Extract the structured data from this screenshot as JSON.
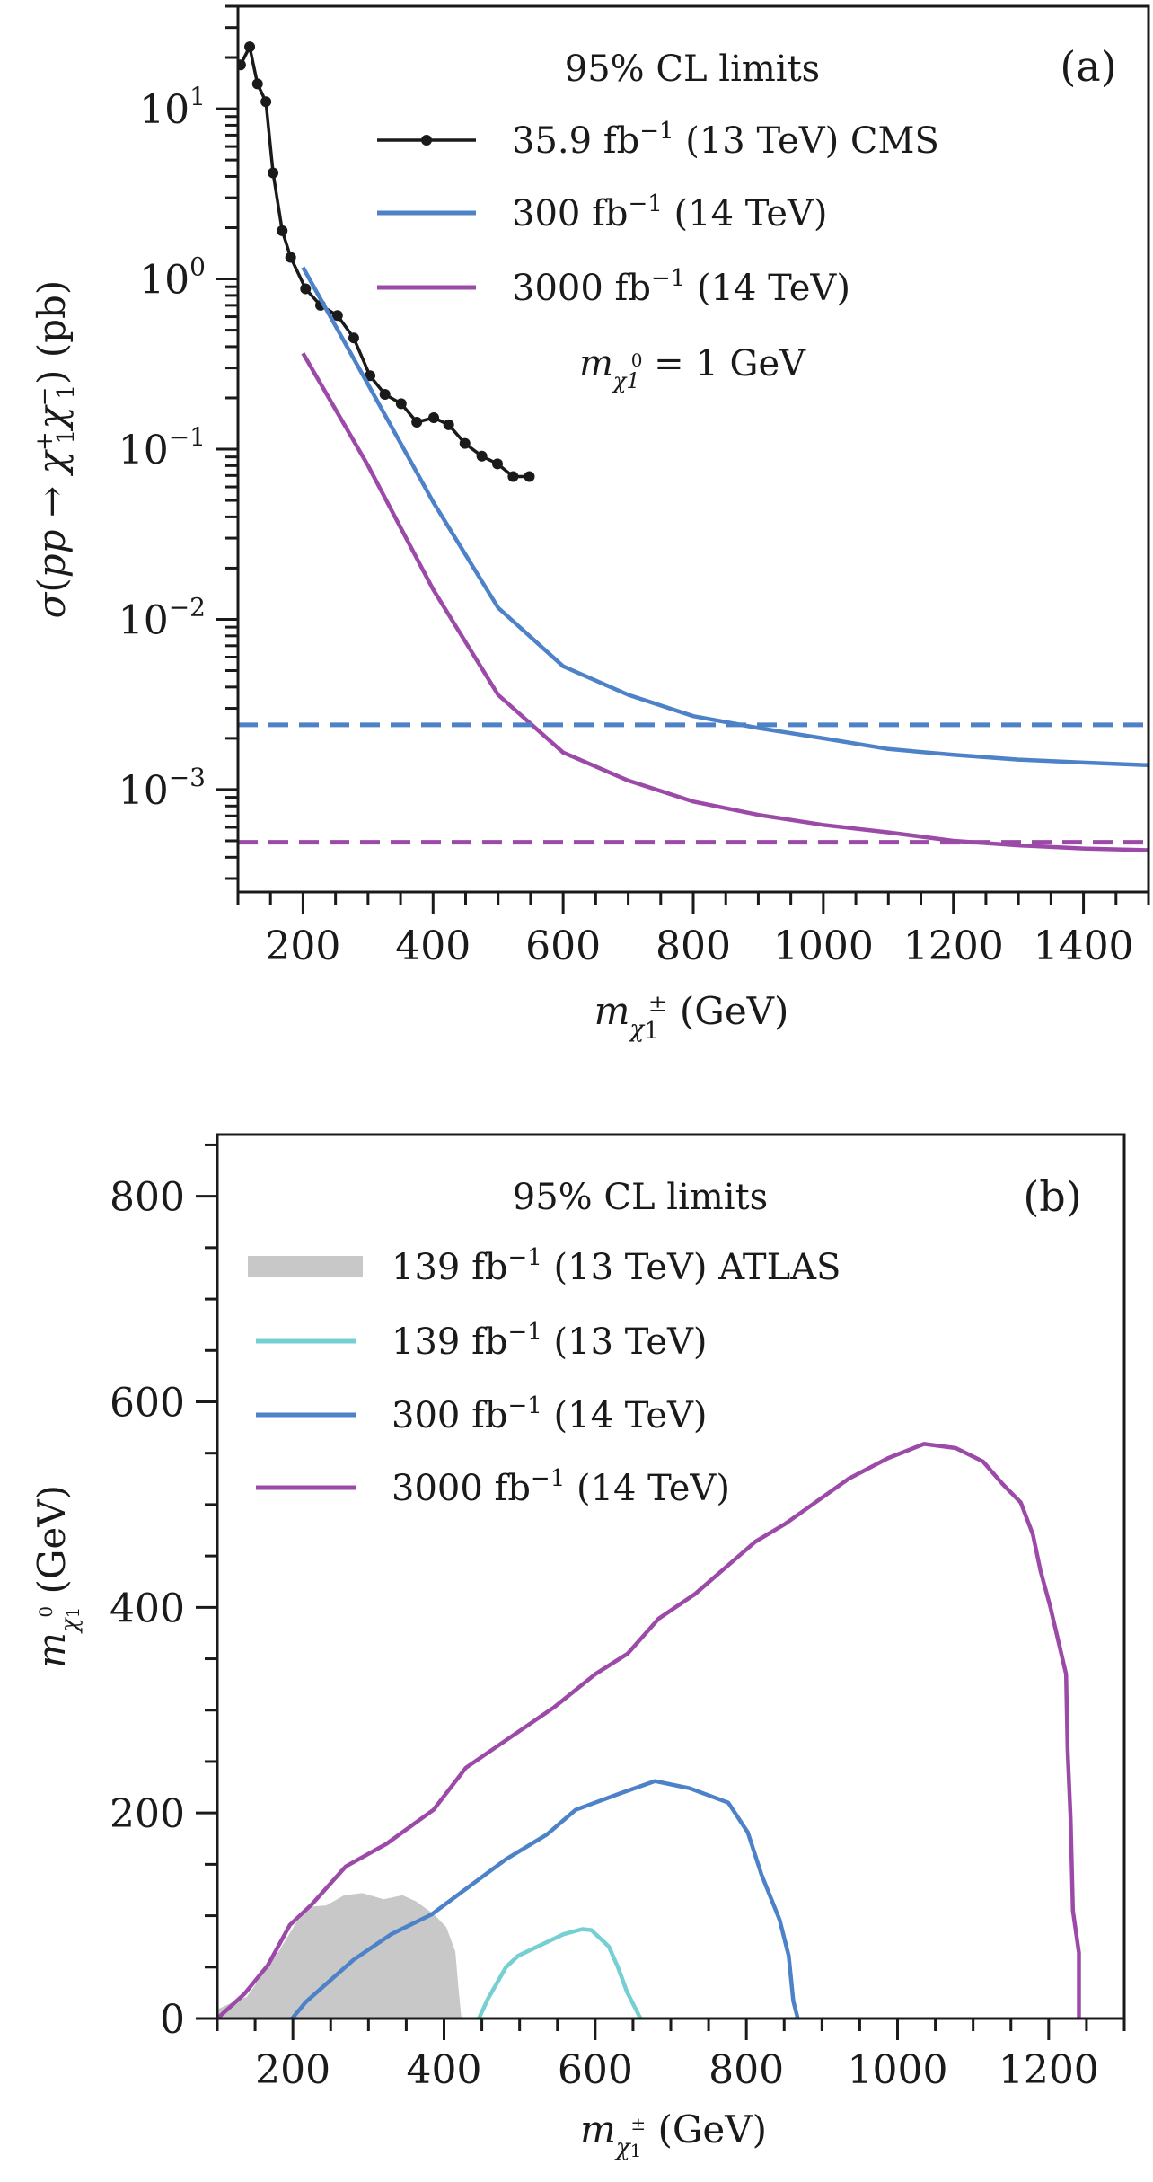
{
  "chart_data": [
    {
      "panel": "(a)",
      "type": "line",
      "yscale": "log",
      "title": "",
      "xlabel": "m_{χ1±} (GeV)",
      "ylabel": "σ(pp → χ1+ χ1−) (pb)",
      "xlim": [
        100,
        1500
      ],
      "ylim": [
        0.00025,
        40
      ],
      "xticks": [
        200,
        400,
        600,
        800,
        1000,
        1200,
        1400
      ],
      "xtick_labels": [
        "200",
        "400",
        "600",
        "800",
        "1000",
        "1200",
        "1400"
      ],
      "yticks": [
        0.001,
        0.01,
        0.1,
        1,
        10
      ],
      "ytick_labels": [
        {
          "base": "10",
          "exp": "−3"
        },
        {
          "base": "10",
          "exp": "−2"
        },
        {
          "base": "10",
          "exp": "−1"
        },
        {
          "base": "10",
          "exp": "0"
        },
        {
          "base": "10",
          "exp": "1"
        }
      ],
      "legend": {
        "title": "95% CL limits",
        "placement": "top-center",
        "entries": [
          {
            "label_main": "35.9 fb",
            "label_sup": "−1",
            "label_rest": " (13 TeV) CMS",
            "series": "cms"
          },
          {
            "label_main": "300 fb",
            "label_sup": "−1",
            "label_rest": " (14 TeV)",
            "series": "hl300"
          },
          {
            "label_main": "3000 fb",
            "label_sup": "−1",
            "label_rest": " (14 TeV)",
            "series": "hl3000"
          }
        ],
        "annotation": {
          "main": "m",
          "sub": "χ1",
          "sup": "0",
          "rest": " = 1 GeV"
        }
      },
      "panel_tag": "(a)",
      "series": [
        {
          "id": "cms",
          "name": "35.9 fb−1 (13 TeV) CMS",
          "color": "#1a1a1a",
          "markers": true,
          "style": "solid",
          "x": [
            104,
            118,
            130,
            143,
            154,
            168,
            181,
            204,
            227,
            253,
            278,
            303,
            326,
            351,
            375,
            401,
            424,
            449,
            475,
            499,
            523,
            548
          ],
          "y": [
            18.1,
            23.1,
            14.0,
            11.0,
            4.2,
            1.92,
            1.34,
            0.875,
            0.7,
            0.61,
            0.45,
            0.27,
            0.21,
            0.185,
            0.144,
            0.153,
            0.139,
            0.108,
            0.091,
            0.082,
            0.069,
            0.069
          ]
        },
        {
          "id": "hl300",
          "name": "300 fb−1 (14 TeV)",
          "color": "#4d82c8",
          "markers": false,
          "style": "solid",
          "x": [
            200,
            300,
            400,
            500,
            600,
            700,
            800,
            900,
            1000,
            1100,
            1200,
            1300,
            1400,
            1500
          ],
          "y": [
            1.17,
            0.24,
            0.049,
            0.0117,
            0.0053,
            0.0036,
            0.0027,
            0.0023,
            0.002,
            0.00173,
            0.0016,
            0.0015,
            0.00144,
            0.00139
          ]
        },
        {
          "id": "hl3000",
          "name": "3000 fb−1 (14 TeV)",
          "color": "#9c4aa8",
          "markers": false,
          "style": "solid",
          "x": [
            200,
            300,
            400,
            500,
            600,
            700,
            800,
            900,
            1000,
            1100,
            1200,
            1300,
            1400,
            1500
          ],
          "y": [
            0.366,
            0.08,
            0.015,
            0.0036,
            0.00165,
            0.00113,
            0.00085,
            0.00071,
            0.00062,
            0.00056,
            0.0005,
            0.00047,
            0.00045,
            0.00044
          ]
        },
        {
          "id": "hl300_ref",
          "name": "300 fb−1 reference",
          "color": "#4d82c8",
          "markers": false,
          "style": "dashed",
          "x": [
            100,
            1500
          ],
          "y": [
            0.0024,
            0.0024
          ]
        },
        {
          "id": "hl3000_ref",
          "name": "3000 fb−1 reference",
          "color": "#9c4aa8",
          "markers": false,
          "style": "dashed",
          "x": [
            100,
            1500
          ],
          "y": [
            0.00049,
            0.00049
          ]
        }
      ]
    },
    {
      "panel": "(b)",
      "type": "area",
      "yscale": "linear",
      "title": "",
      "xlabel": "m_{χ1±} (GeV)",
      "ylabel": "m_{χ1^0} (GeV)",
      "xlim": [
        100,
        1300
      ],
      "ylim": [
        0,
        860
      ],
      "xticks": [
        200,
        400,
        600,
        800,
        1000,
        1200
      ],
      "xtick_labels": [
        "200",
        "400",
        "600",
        "800",
        "1000",
        "1200"
      ],
      "yticks": [
        0,
        200,
        400,
        600,
        800
      ],
      "ytick_labels": [
        "0",
        "200",
        "400",
        "600",
        "800"
      ],
      "legend": {
        "title": "95% CL limits",
        "placement": "top-center",
        "entries": [
          {
            "label_main": "139 fb",
            "label_sup": "−1",
            "label_rest": " (13 TeV) ATLAS",
            "series": "atlas",
            "kind": "patch"
          },
          {
            "label_main": "139 fb",
            "label_sup": "−1",
            "label_rest": " (13 TeV)",
            "series": "lhc139",
            "kind": "line"
          },
          {
            "label_main": "300 fb",
            "label_sup": "−1",
            "label_rest": " (14 TeV)",
            "series": "hl300",
            "kind": "line"
          },
          {
            "label_main": "3000 fb",
            "label_sup": "−1",
            "label_rest": " (14 TeV)",
            "series": "hl3000",
            "kind": "line"
          }
        ]
      },
      "panel_tag": "(b)",
      "series": [
        {
          "id": "atlas",
          "name": "139 fb−1 (13 TeV) ATLAS",
          "color": "#c8c8c8",
          "kind": "filled",
          "x": [
            100,
            130,
            139,
            181,
            205,
            226,
            244,
            268,
            292,
            320,
            345,
            363,
            387,
            403,
            415,
            419,
            423
          ],
          "y": [
            9,
            19,
            21,
            65,
            94,
            109,
            110,
            120,
            122,
            116,
            120,
            114,
            101,
            89,
            65,
            30,
            0
          ]
        },
        {
          "id": "lhc139",
          "name": "139 fb−1 (13 TeV)",
          "color": "#76cfd2",
          "kind": "line",
          "x": [
            446,
            458,
            482,
            498,
            558,
            583,
            595,
            618,
            630,
            642,
            660
          ],
          "y": [
            0,
            19,
            50,
            61,
            82,
            87,
            86,
            70,
            50,
            26,
            0
          ]
        },
        {
          "id": "hl300",
          "name": "300 fb−1 (14 TeV)",
          "color": "#4d82c8",
          "kind": "line",
          "x": [
            199,
            217,
            280,
            330,
            383,
            482,
            536,
            574,
            633,
            679,
            725,
            776,
            802,
            820,
            844,
            856,
            862,
            868
          ],
          "y": [
            0,
            16,
            57,
            82,
            101,
            155,
            179,
            203,
            219,
            231,
            224,
            210,
            181,
            140,
            96,
            61,
            17,
            0
          ]
        },
        {
          "id": "hl3000",
          "name": "3000 fb−1 (14 TeV)",
          "color": "#9c4aa8",
          "kind": "line",
          "x": [
            100,
            136,
            167,
            196,
            225,
            270,
            324,
            386,
            429,
            546,
            600,
            643,
            684,
            732,
            812,
            851,
            935,
            987,
            1035,
            1077,
            1113,
            1139,
            1163,
            1179,
            1189,
            1202,
            1223,
            1225,
            1229,
            1232,
            1240,
            1240
          ],
          "y": [
            0,
            24,
            52,
            91,
            111,
            148,
            170,
            203,
            244,
            303,
            335,
            355,
            389,
            413,
            464,
            481,
            525,
            545,
            559,
            555,
            542,
            520,
            502,
            471,
            436,
            401,
            335,
            261,
            195,
            105,
            64,
            0
          ]
        }
      ]
    }
  ]
}
